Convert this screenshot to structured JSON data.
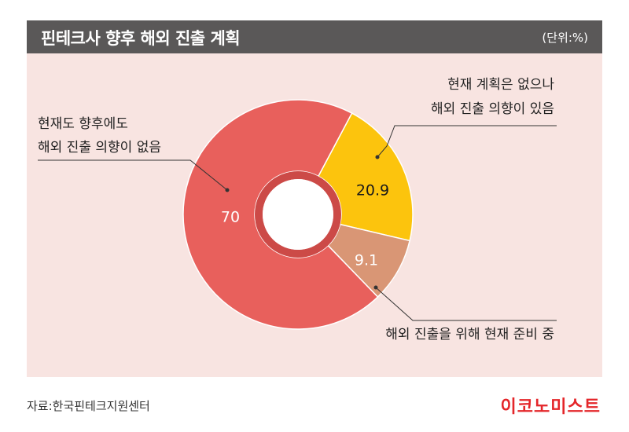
{
  "header": {
    "title": "핀테크사 향후 해외 진출 계획",
    "unit": "(단위:%)"
  },
  "footer": {
    "source": "자료:한국핀테크지원센터",
    "brand": "이코노미스트"
  },
  "colors": {
    "title_bar": "#5a5858",
    "panel_bg": "#f8e4e1",
    "brand": "#e4262a",
    "slice_no_plan": "#e8605c",
    "slice_plan_intent": "#fcc40d",
    "slice_preparing": "#d99675"
  },
  "chart_data": {
    "type": "pie",
    "style": "donut",
    "slices": [
      {
        "label_lines": [
          "현재 계획은 없으나",
          "해외 진출 의향이 있음"
        ],
        "value": 20.9,
        "value_label": "20.9",
        "color": "#fcc40d",
        "label_color": "#1a1a1a"
      },
      {
        "label_lines": [
          "해외 진출을 위해 현재 준비 중"
        ],
        "value": 9.1,
        "value_label": "9.1",
        "color": "#d99675",
        "label_color": "#ffffff"
      },
      {
        "label_lines": [
          "현재도 향후에도",
          "해외 진출 의향이 없음"
        ],
        "value": 70,
        "value_label": "70",
        "color": "#e8605c",
        "label_color": "#ffffff"
      }
    ]
  }
}
